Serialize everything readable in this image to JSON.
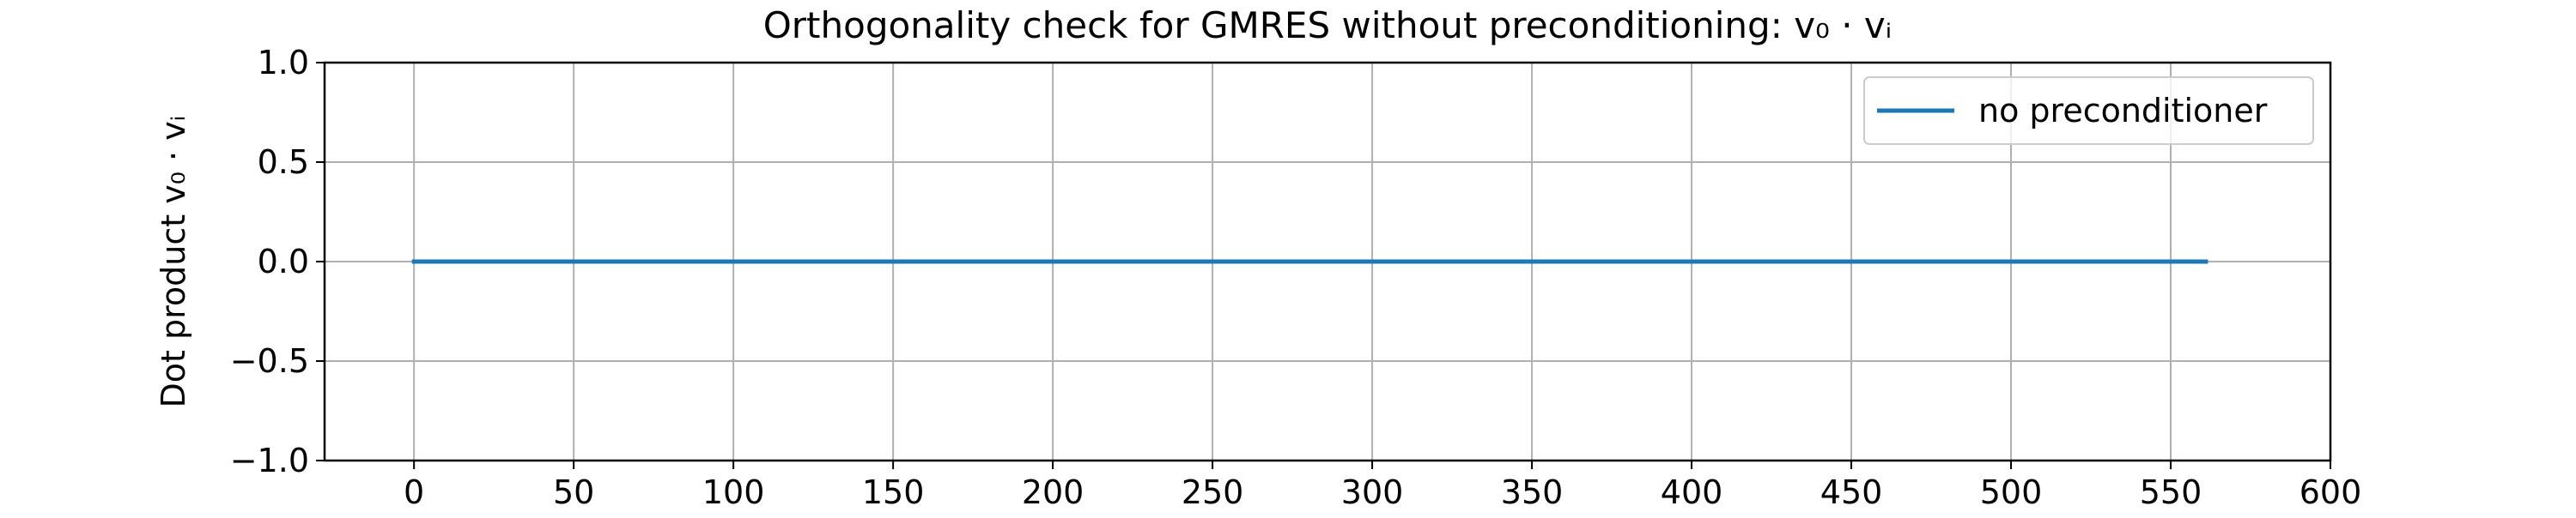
{
  "chart_data": {
    "type": "line",
    "title": "Orthogonality check for GMRES without preconditioning: v₀ · vᵢ",
    "xlabel": "",
    "ylabel": "Dot product v₀ · vᵢ",
    "xlim": [
      -28,
      600
    ],
    "ylim": [
      -1.0,
      1.0
    ],
    "xticks": [
      0,
      50,
      100,
      150,
      200,
      250,
      300,
      350,
      400,
      450,
      500,
      550,
      600
    ],
    "xtick_labels": [
      "0",
      "50",
      "100",
      "150",
      "200",
      "250",
      "300",
      "350",
      "400",
      "450",
      "500",
      "550",
      "600"
    ],
    "yticks": [
      -1.0,
      -0.5,
      0.0,
      0.5,
      1.0
    ],
    "ytick_labels": [
      "−1.0",
      "−0.5",
      "0.0",
      "0.5",
      "1.0"
    ],
    "grid": true,
    "legend_position": "top-right",
    "series": [
      {
        "name": "no preconditioner",
        "color": "#1f77b4",
        "x": [
          0,
          561
        ],
        "y": [
          0.0,
          0.0
        ]
      }
    ]
  }
}
